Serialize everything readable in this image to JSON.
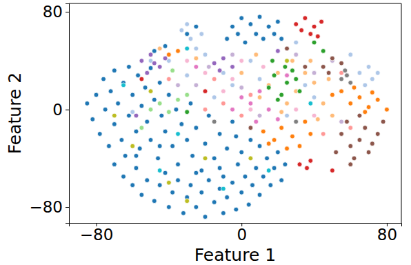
{
  "chart_data": {
    "type": "scatter",
    "x_label": "Feature 1",
    "y_label": "Feature 2",
    "xlim": [
      -95,
      88
    ],
    "ylim": [
      -93,
      87
    ],
    "xticks": [
      {
        "value": -80,
        "label": "−80"
      },
      0,
      80
    ],
    "yticks": [
      {
        "value": -80,
        "label": "−80"
      },
      0,
      80
    ],
    "grid": false,
    "marker": "circle",
    "series": [
      {
        "color": "#1f77b4",
        "x": [
          -85,
          -82,
          -80,
          -78,
          -76,
          -75,
          -73,
          -72,
          -70,
          -70,
          -68,
          -66,
          -65,
          -64,
          -62,
          -62,
          -60,
          -58,
          -57,
          -56,
          -55,
          -53,
          -52,
          -50,
          -50,
          -48,
          -46,
          -45,
          -44,
          -42,
          -40,
          -38,
          -36,
          -35,
          -33,
          -30,
          -28,
          -27,
          -25,
          -22,
          -20,
          -18,
          -15,
          -12,
          -10,
          -8,
          -5,
          -2,
          -70,
          -65,
          -60,
          -58,
          -55,
          -52,
          -48,
          -45,
          -42,
          -40,
          -38,
          -35,
          -32,
          -30,
          -28,
          -25,
          -22,
          -20,
          -18,
          -15,
          -12,
          -10,
          -8,
          -5,
          -3,
          0,
          2,
          4,
          6,
          8,
          10,
          12,
          14,
          16,
          18,
          20,
          22,
          24,
          0,
          5,
          -3,
          10,
          -45,
          -58,
          -25,
          -12,
          -8,
          -5,
          -2,
          0,
          2,
          5,
          8,
          10,
          12,
          15,
          18,
          20,
          22,
          -30,
          -25,
          -48,
          -42
        ],
        "values": [
          5,
          -8,
          12,
          -20,
          25,
          0,
          -30,
          15,
          32,
          -12,
          5,
          -25,
          22,
          -38,
          35,
          -5,
          12,
          -18,
          28,
          -32,
          3,
          18,
          -10,
          -25,
          34,
          8,
          -40,
          22,
          -5,
          -18,
          12,
          -30,
          0,
          -45,
          -12,
          -25,
          5,
          -38,
          -15,
          -50,
          -28,
          -5,
          -40,
          -20,
          -55,
          -32,
          -10,
          -45,
          -45,
          -55,
          -62,
          -48,
          -70,
          -58,
          -75,
          -62,
          -52,
          -80,
          -68,
          -58,
          -85,
          -72,
          -62,
          -80,
          -68,
          -88,
          -58,
          -76,
          -65,
          -85,
          -72,
          -60,
          -82,
          -68,
          -55,
          -78,
          -62,
          -48,
          -70,
          -55,
          -40,
          -62,
          -48,
          -35,
          -58,
          -45,
          -35,
          -25,
          -22,
          -30,
          -30,
          -38,
          -52,
          -48,
          58,
          68,
          62,
          75,
          55,
          70,
          62,
          76,
          58,
          68,
          62,
          72,
          58,
          62,
          68,
          48,
          52
        ]
      },
      {
        "color": "#aec7e8",
        "x": [
          -33,
          -28,
          -22,
          -30,
          -25,
          -10,
          -5,
          5,
          10,
          -15,
          -40,
          -20,
          65,
          70,
          72,
          75,
          68,
          60,
          40,
          35,
          -60,
          -50,
          30,
          25,
          -30
        ],
        "values": [
          65,
          58,
          62,
          70,
          50,
          30,
          20,
          40,
          25,
          10,
          40,
          45,
          30,
          35,
          25,
          30,
          20,
          45,
          10,
          20,
          -2,
          40,
          55,
          -5,
          28
        ]
      },
      {
        "color": "#ff7f0e",
        "x": [
          60,
          65,
          70,
          75,
          80,
          68,
          55,
          62,
          72,
          12,
          18,
          22,
          28,
          32,
          15,
          25,
          38,
          35,
          -40,
          -35,
          50
        ],
        "values": [
          5,
          10,
          2,
          8,
          0,
          -2,
          15,
          18,
          14,
          -18,
          -25,
          -15,
          -22,
          -30,
          -28,
          -32,
          -20,
          -10,
          45,
          48,
          12
        ]
      },
      {
        "color": "#ffbb78",
        "x": [
          15,
          20,
          25,
          30,
          35,
          40,
          45,
          50,
          28,
          22,
          42,
          10,
          -25,
          -45,
          0,
          8,
          38,
          48
        ],
        "values": [
          20,
          30,
          5,
          15,
          30,
          22,
          5,
          -5,
          40,
          -2,
          -8,
          10,
          42,
          50,
          30,
          45,
          40,
          25
        ]
      },
      {
        "color": "#2ca02c",
        "x": [
          15,
          18,
          22,
          25,
          28,
          20,
          30,
          24,
          32,
          17,
          -30,
          40,
          45
        ],
        "values": [
          18,
          28,
          12,
          22,
          32,
          8,
          25,
          35,
          15,
          40,
          -2,
          55,
          48
        ]
      },
      {
        "color": "#98df8a",
        "x": [
          -45,
          -40,
          -35,
          -50,
          -30,
          -55,
          -38
        ],
        "values": [
          5,
          -2,
          8,
          0,
          12,
          -15,
          32
        ]
      },
      {
        "color": "#d62728",
        "x": [
          30,
          35,
          40,
          38,
          44,
          33,
          42,
          32,
          36,
          38,
          -55,
          -20,
          50
        ],
        "values": [
          70,
          75,
          68,
          62,
          72,
          65,
          60,
          -45,
          -48,
          -42,
          25,
          15,
          -50
        ]
      },
      {
        "color": "#ff9896",
        "x": [
          -20,
          -10,
          0,
          5,
          -15,
          45,
          55,
          -40,
          60
        ],
        "values": [
          0,
          5,
          -5,
          12,
          25,
          -20,
          30,
          25,
          -15
        ]
      },
      {
        "color": "#9467bd",
        "x": [
          -55,
          -50,
          -45,
          -52,
          -42,
          -48,
          -15,
          -10,
          -5,
          -12,
          -58,
          20
        ],
        "values": [
          40,
          45,
          35,
          30,
          42,
          38,
          38,
          42,
          35,
          32,
          -5,
          48
        ]
      },
      {
        "color": "#c5b0d5",
        "x": [
          -25,
          -18,
          -5,
          0,
          10,
          40,
          30,
          -35,
          50,
          55
        ],
        "values": [
          20,
          35,
          45,
          18,
          -5,
          30,
          45,
          20,
          40,
          -10
        ]
      },
      {
        "color": "#8c564b",
        "x": [
          55,
          60,
          65,
          70,
          75,
          62,
          68,
          72,
          58,
          78,
          52,
          65,
          45,
          50,
          55,
          48,
          35,
          25,
          5,
          60
        ],
        "values": [
          -20,
          -30,
          -25,
          -35,
          -20,
          -40,
          -15,
          -28,
          -10,
          -10,
          -35,
          -5,
          35,
          42,
          38,
          30,
          35,
          50,
          -15,
          -45
        ]
      },
      {
        "color": "#e377c2",
        "x": [
          5,
          10,
          0,
          15,
          20,
          -5,
          8,
          25,
          -25
        ],
        "values": [
          5,
          15,
          10,
          0,
          -8,
          0,
          -10,
          28,
          35
        ]
      },
      {
        "color": "#f7b6d2",
        "x": [
          -10,
          -5,
          5,
          30,
          0,
          12,
          -20,
          -30,
          40
        ],
        "values": [
          15,
          25,
          0,
          0,
          40,
          35,
          30,
          40,
          -5
        ]
      },
      {
        "color": "#7f7f7f",
        "x": [
          55,
          58,
          60,
          57,
          30,
          -15
        ],
        "values": [
          25,
          28,
          22,
          32,
          -10,
          -10
        ]
      },
      {
        "color": "#bcbd22",
        "x": [
          -60,
          -40,
          -20,
          -50,
          5,
          -70,
          -30,
          25
        ],
        "values": [
          -30,
          -60,
          -40,
          15,
          -40,
          -5,
          -75,
          40
        ]
      },
      {
        "color": "#17becf",
        "x": [
          -65,
          -35,
          -10,
          -30,
          15,
          38,
          -45
        ],
        "values": [
          20,
          -20,
          -65,
          50,
          -50,
          5,
          -50
        ]
      }
    ]
  }
}
